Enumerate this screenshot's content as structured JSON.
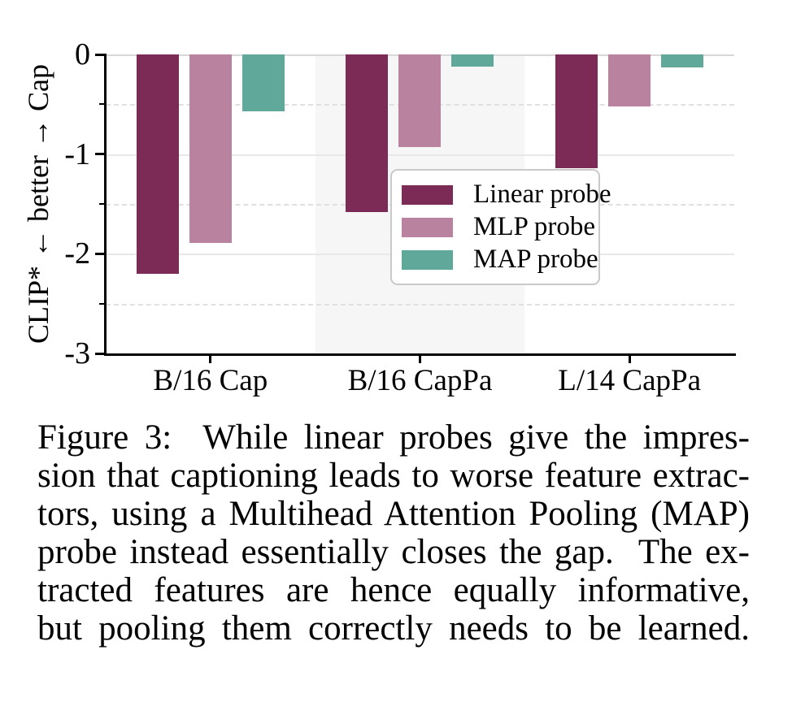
{
  "chart_data": {
    "type": "bar",
    "title": "",
    "categories": [
      "B/16 Cap",
      "B/16 CapPa",
      "L/14 CapPa"
    ],
    "series": [
      {
        "name": "Linear probe",
        "color": "#7b2b55",
        "values": [
          -2.2,
          -1.58,
          -1.14
        ]
      },
      {
        "name": "MLP probe",
        "color": "#b9829f",
        "values": [
          -1.89,
          -0.93,
          -0.52
        ]
      },
      {
        "name": "MAP probe",
        "color": "#5fa89a",
        "values": [
          -0.57,
          -0.12,
          -0.13
        ]
      }
    ],
    "xlabel": "",
    "ylabel": "CLIP* ← better → Cap",
    "ylim": [
      -3,
      0
    ],
    "yticks": [
      0,
      -1,
      -2,
      -3
    ],
    "grid": "horizontal; solid light lines at integers, dashed lighter lines at half-integers",
    "legend_position": "inside lower-right, boxed with rounded corners",
    "highlight_band": {
      "category": "B/16 CapPa",
      "color": "#f6f6f6"
    }
  },
  "caption": {
    "lines": [
      "Figure 3:  While linear probes give the impres-",
      "sion that captioning leads to worse feature extrac-",
      "tors, using a Multihead Attention Pooling (MAP)",
      "probe instead essentially closes the gap.  The ex-",
      "tracted features are hence equally informative,",
      "but pooling them correctly needs to be learned."
    ]
  }
}
